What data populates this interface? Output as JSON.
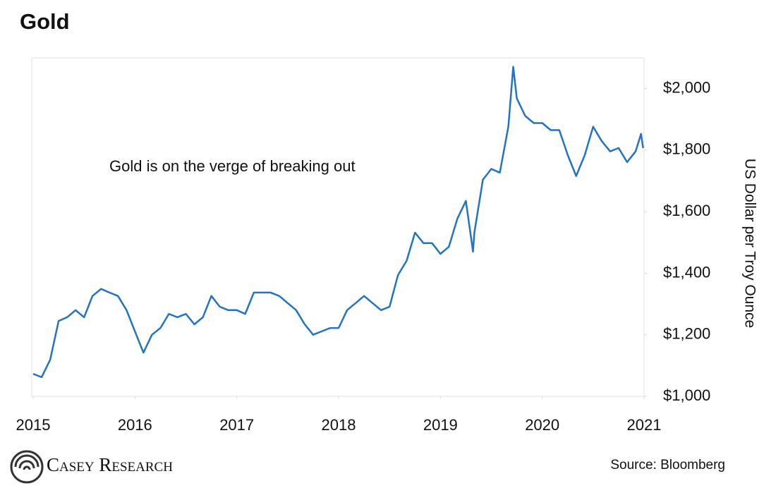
{
  "chart_data": {
    "type": "line",
    "title": "Gold",
    "annotation": "Gold is on the verge of breaking out",
    "y_label": "US Dollar per Troy Ounce",
    "source": "Source: Bloomberg",
    "brand": "Casey Research",
    "x": [
      2015.0,
      2015.083,
      2015.167,
      2015.25,
      2015.333,
      2015.417,
      2015.5,
      2015.583,
      2015.667,
      2015.75,
      2015.833,
      2015.917,
      2016.0,
      2016.083,
      2016.167,
      2016.25,
      2016.333,
      2016.417,
      2016.5,
      2016.583,
      2016.667,
      2016.75,
      2016.833,
      2016.917,
      2017.0,
      2017.083,
      2017.167,
      2017.25,
      2017.333,
      2017.417,
      2017.5,
      2017.583,
      2017.667,
      2017.75,
      2017.833,
      2017.917,
      2018.0,
      2018.083,
      2018.167,
      2018.25,
      2018.333,
      2018.417,
      2018.5,
      2018.583,
      2018.667,
      2018.75,
      2018.833,
      2018.917,
      2019.0,
      2019.083,
      2019.167,
      2019.25,
      2019.32,
      2019.333,
      2019.417,
      2019.5,
      2019.583,
      2019.667,
      2019.715,
      2019.75,
      2019.833,
      2019.917,
      2020.0,
      2020.083,
      2020.167,
      2020.25,
      2020.333,
      2020.417,
      2020.5,
      2020.583,
      2020.667,
      2020.75,
      2020.833,
      2020.917,
      2020.97,
      2020.99
    ],
    "series": [
      {
        "name": "Gold",
        "color": "#2273c3",
        "values": [
          1073,
          1062,
          1119,
          1245,
          1257,
          1280,
          1257,
          1326,
          1349,
          1337,
          1326,
          1280,
          1211,
          1142,
          1200,
          1222,
          1268,
          1257,
          1268,
          1234,
          1257,
          1326,
          1291,
          1280,
          1280,
          1268,
          1337,
          1337,
          1337,
          1326,
          1303,
          1280,
          1234,
          1200,
          1211,
          1222,
          1222,
          1280,
          1303,
          1326,
          1303,
          1280,
          1291,
          1394,
          1440,
          1532,
          1498,
          1498,
          1463,
          1486,
          1578,
          1635,
          1470,
          1532,
          1704,
          1739,
          1727,
          1876,
          2071,
          1968,
          1911,
          1888,
          1888,
          1865,
          1865,
          1784,
          1716,
          1784,
          1876,
          1830,
          1796,
          1807,
          1761,
          1796,
          1853,
          1807
        ]
      }
    ],
    "xlim": [
      2015,
      2021
    ],
    "xticks": [
      2015,
      2016,
      2017,
      2018,
      2019,
      2020,
      2021
    ],
    "ylim": [
      1000,
      2100
    ],
    "yticks": [
      {
        "value": 1000,
        "label": "$1,000"
      },
      {
        "value": 1200,
        "label": "$1,200"
      },
      {
        "value": 1400,
        "label": "$1,400"
      },
      {
        "value": 1600,
        "label": "$1,600"
      },
      {
        "value": 1800,
        "label": "$1,800"
      },
      {
        "value": 2000,
        "label": "$2,000"
      }
    ],
    "grid": false
  }
}
